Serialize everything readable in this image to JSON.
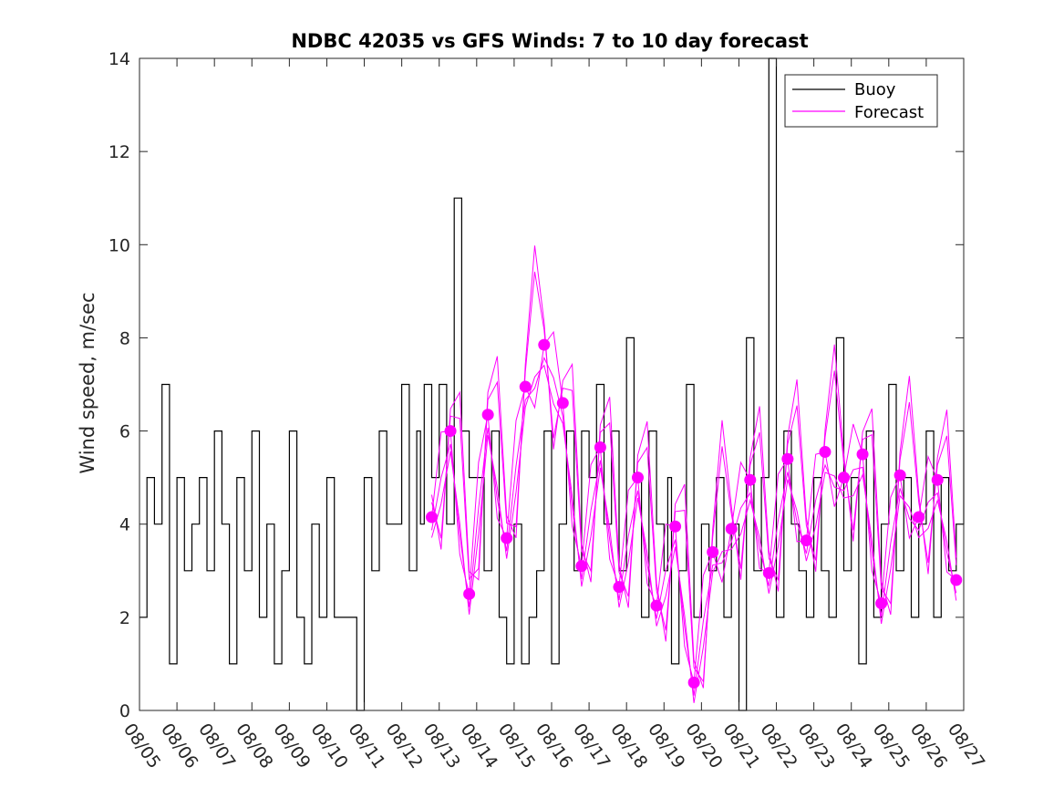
{
  "chart_data": {
    "type": "line",
    "title": "NDBC 42035 vs GFS Winds: 7 to 10 day forecast",
    "xlabel": "",
    "ylabel": "Wind speed, m/sec",
    "x_tick_labels": [
      "08/05",
      "08/06",
      "08/07",
      "08/08",
      "08/09",
      "08/10",
      "08/11",
      "08/12",
      "08/13",
      "08/14",
      "08/15",
      "08/16",
      "08/17",
      "08/18",
      "08/19",
      "08/20",
      "08/21",
      "08/22",
      "08/23",
      "08/24",
      "08/25",
      "08/26",
      "08/27"
    ],
    "xlim_days": [
      0,
      22
    ],
    "ylim": [
      0,
      14
    ],
    "y_ticks": [
      0,
      2,
      4,
      6,
      8,
      10,
      12,
      14
    ],
    "grid": false,
    "legend": {
      "position": "top-right",
      "entries": [
        "Buoy",
        "Forecast"
      ]
    },
    "colors": {
      "buoy": "#000000",
      "forecast": "#ff00ff"
    },
    "series": [
      {
        "name": "Buoy",
        "note": "hourly observations, approximate values read from figure",
        "x_days": [
          0.0,
          0.2,
          0.4,
          0.6,
          0.8,
          1.0,
          1.2,
          1.4,
          1.6,
          1.8,
          2.0,
          2.2,
          2.4,
          2.6,
          2.8,
          3.0,
          3.2,
          3.4,
          3.6,
          3.8,
          4.0,
          4.2,
          4.4,
          4.6,
          4.8,
          5.0,
          5.2,
          5.4,
          5.6,
          5.8,
          6.0,
          6.2,
          6.4,
          6.6,
          6.8,
          7.0,
          7.2,
          7.4,
          7.5,
          7.6,
          7.8,
          8.0,
          8.2,
          8.4,
          8.6,
          8.8,
          9.0,
          9.2,
          9.4,
          9.6,
          9.8,
          10.0,
          10.2,
          10.4,
          10.6,
          10.8,
          11.0,
          11.2,
          11.4,
          11.6,
          11.8,
          12.0,
          12.2,
          12.4,
          12.6,
          12.8,
          13.0,
          13.2,
          13.4,
          13.6,
          13.8,
          14.0,
          14.1,
          14.2,
          14.4,
          14.6,
          14.8,
          15.0,
          15.2,
          15.4,
          15.6,
          15.8,
          16.0,
          16.2,
          16.4,
          16.6,
          16.8,
          17.0,
          17.2,
          17.4,
          17.6,
          17.8,
          18.0,
          18.2,
          18.4,
          18.6,
          18.8,
          19.0,
          19.2,
          19.4,
          19.6,
          19.8,
          20.0,
          20.2,
          20.4,
          20.6,
          20.8,
          21.0,
          21.2,
          21.4,
          21.6,
          21.8,
          22.0
        ],
        "values": [
          2,
          5,
          4,
          7,
          1,
          5,
          3,
          4,
          5,
          3,
          6,
          4,
          1,
          5,
          3,
          6,
          2,
          4,
          1,
          3,
          6,
          2,
          1,
          4,
          2,
          5,
          2,
          2,
          2,
          0,
          5,
          3,
          6,
          4,
          4,
          7,
          3,
          6,
          4,
          7,
          5,
          7,
          4,
          11,
          6,
          5,
          5,
          3,
          6,
          2,
          1,
          4,
          1,
          2,
          3,
          6,
          1,
          4,
          6,
          3,
          6,
          5,
          7,
          4,
          6,
          3,
          8,
          5,
          2,
          6,
          4,
          3,
          5,
          1,
          3,
          7,
          2,
          4,
          3,
          5,
          2,
          4,
          0,
          8,
          3,
          5,
          14,
          2,
          6,
          4,
          3,
          2,
          5,
          3,
          2,
          8,
          3,
          5,
          1,
          6,
          2,
          4,
          7,
          3,
          5,
          2,
          4,
          6,
          2,
          5,
          3,
          4,
          6
        ]
      },
      {
        "name": "Forecast",
        "note": "ensemble forecast lines; markers show a single forecast trace sampled every half day (approximate)",
        "marker_x_days": [
          7.8,
          8.3,
          8.8,
          9.3,
          9.8,
          10.3,
          10.8,
          11.3,
          11.8,
          12.3,
          12.8,
          13.3,
          13.8,
          14.3,
          14.8,
          15.3,
          15.8,
          16.3,
          16.8,
          17.3,
          17.8,
          18.3,
          18.8,
          19.3,
          19.8,
          20.3,
          20.8,
          21.3,
          21.8
        ],
        "marker_values": [
          4.15,
          6.0,
          2.5,
          6.35,
          3.7,
          6.95,
          7.85,
          6.6,
          3.1,
          5.65,
          2.65,
          5.0,
          2.25,
          3.95,
          0.6,
          3.4,
          3.9,
          4.95,
          2.95,
          5.4,
          3.65,
          5.55,
          5.0,
          5.5,
          2.3,
          5.05,
          4.15,
          4.95,
          2.8
        ]
      }
    ]
  }
}
